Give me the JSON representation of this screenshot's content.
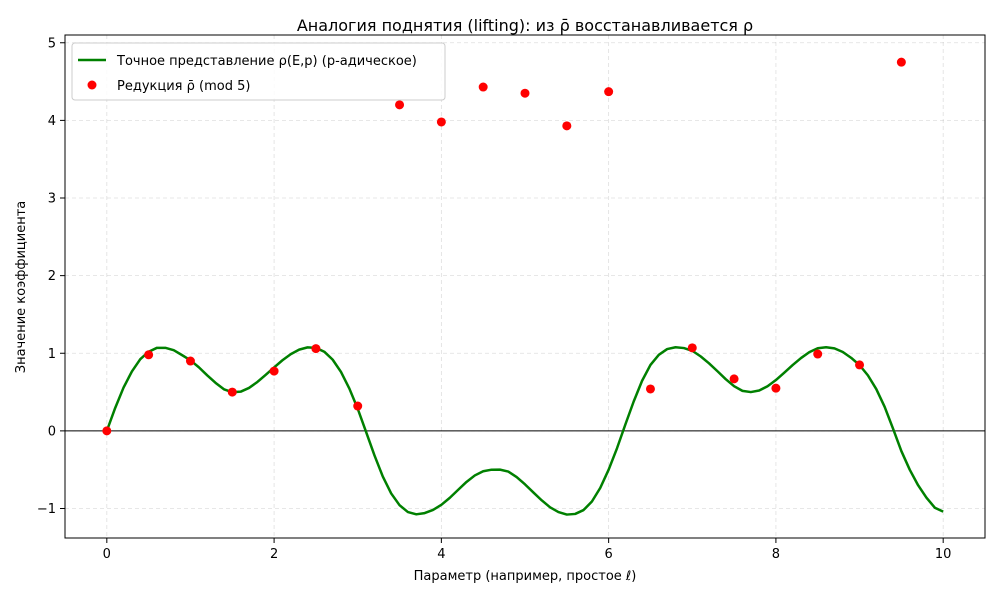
{
  "chart_data": {
    "type": "line",
    "title": "Аналогия поднятия (lifting): из ρ̄ восстанавливается ρ",
    "xlabel": "Параметр (например, простое ℓ)",
    "ylabel": "Значение коэффициента",
    "xlim": [
      -0.5,
      10.5
    ],
    "ylim": [
      -1.38,
      5.1
    ],
    "x_ticks": [
      0,
      2,
      4,
      6,
      8,
      10
    ],
    "y_ticks": [
      -1,
      0,
      1,
      2,
      3,
      4,
      5
    ],
    "x_tick_labels": [
      "0",
      "2",
      "4",
      "6",
      "8",
      "10"
    ],
    "y_tick_labels": [
      "−1",
      "0",
      "1",
      "2",
      "3",
      "4",
      "5"
    ],
    "grid": true,
    "zero_line": true,
    "legend_position": "upper-left",
    "colors": {
      "line": "#008000",
      "points": "#ff0000"
    },
    "series": [
      {
        "name": "Точное представление ρ(E,p) (p-адическое)",
        "kind": "line",
        "x": [
          0,
          0.1,
          0.2,
          0.3,
          0.4,
          0.5,
          0.6,
          0.7,
          0.8,
          0.9,
          1,
          1.1,
          1.2,
          1.3,
          1.4,
          1.5,
          1.6,
          1.7,
          1.8,
          1.9,
          2,
          2.1,
          2.2,
          2.3,
          2.4,
          2.5,
          2.6,
          2.7,
          2.8,
          2.9,
          3,
          3.1,
          3.2,
          3.3,
          3.4,
          3.5,
          3.6,
          3.7,
          3.8,
          3.9,
          4,
          4.1,
          4.2,
          4.3,
          4.4,
          4.5,
          4.6,
          4.7,
          4.8,
          4.9,
          5,
          5.1,
          5.2,
          5.3,
          5.4,
          5.5,
          5.6,
          5.7,
          5.8,
          5.9,
          6,
          6.1,
          6.2,
          6.3,
          6.4,
          6.5,
          6.6,
          6.7,
          6.8,
          6.9,
          7,
          7.1,
          7.2,
          7.3,
          7.4,
          7.5,
          7.6,
          7.7,
          7.8,
          7.9,
          8,
          8.1,
          8.2,
          8.3,
          8.4,
          8.5,
          8.6,
          8.7,
          8.8,
          8.9,
          9,
          9.1,
          9.2,
          9.3,
          9.4,
          9.5,
          9.6,
          9.7,
          9.8,
          9.9,
          10
        ],
        "y": [
          0,
          0.295,
          0.558,
          0.766,
          0.923,
          1.02,
          1.07,
          1.07,
          1.04,
          0.976,
          0.909,
          0.82,
          0.716,
          0.619,
          0.536,
          0.498,
          0.505,
          0.553,
          0.63,
          0.722,
          0.818,
          0.91,
          0.989,
          1.047,
          1.076,
          1.07,
          1.02,
          0.918,
          0.759,
          0.545,
          0.285,
          -0.014,
          -0.315,
          -0.589,
          -0.806,
          -0.957,
          -1.046,
          -1.075,
          -1.059,
          -1.018,
          -0.953,
          -0.863,
          -0.76,
          -0.658,
          -0.574,
          -0.52,
          -0.5,
          -0.499,
          -0.524,
          -0.595,
          -0.689,
          -0.793,
          -0.895,
          -0.985,
          -1.046,
          -1.078,
          -1.07,
          -1.02,
          -0.91,
          -0.734,
          -0.5,
          -0.224,
          0.082,
          0.38,
          0.646,
          0.85,
          0.98,
          1.054,
          1.077,
          1.067,
          1.032,
          0.96,
          0.87,
          0.77,
          0.666,
          0.576,
          0.515,
          0.5,
          0.52,
          0.575,
          0.655,
          0.75,
          0.848,
          0.938,
          1.015,
          1.065,
          1.078,
          1.063,
          1.016,
          0.941,
          0.847,
          0.715,
          0.539,
          0.31,
          0.03,
          -0.26,
          -0.5,
          -0.7,
          -0.86,
          -0.99,
          -1.04
        ]
      },
      {
        "name": "Редукция ρ̄ (mod 5)",
        "kind": "scatter",
        "x": [
          0,
          0.5,
          1,
          1.5,
          2,
          2.5,
          3,
          3.5,
          4,
          4.5,
          5,
          5.5,
          6,
          6.5,
          7,
          7.5,
          8,
          8.5,
          9,
          9.5
        ],
        "y": [
          0,
          0.98,
          0.9,
          0.5,
          0.77,
          1.06,
          0.32,
          4.2,
          3.98,
          4.43,
          4.35,
          3.93,
          4.37,
          0.54,
          1.07,
          0.67,
          0.55,
          0.99,
          0.85,
          4.75
        ]
      }
    ]
  }
}
